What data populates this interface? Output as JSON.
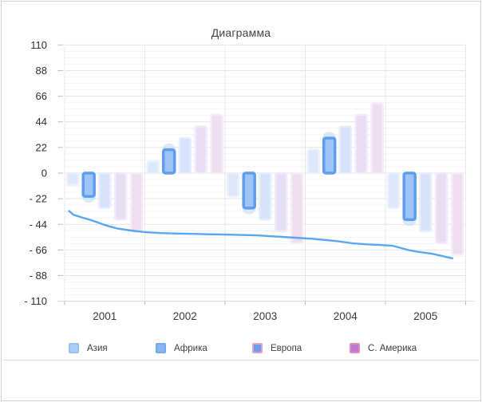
{
  "window": {
    "background": "#ffffff",
    "border_color": "#cfcfcf"
  },
  "chart": {
    "title": "Диаграмма",
    "legend": [
      {
        "label": "Азия",
        "fill": "#abcdf6",
        "border": "#97bff3"
      },
      {
        "label": "Африка",
        "fill": "#88b6f2",
        "border": "#77a8ee"
      },
      {
        "label": "Европа",
        "fill": "#6f9cec",
        "border": "#e2a0c8"
      },
      {
        "label": "С. Америка",
        "fill": "#bd77cd",
        "border": "#e08bbd"
      }
    ],
    "y_tick_labels": [
      "110",
      "88",
      "66",
      "44",
      "22",
      "0",
      "- 22",
      "- 44",
      "- 66",
      "- 88",
      "- 110"
    ],
    "x_labels": [
      "2001",
      "2002",
      "2003",
      "2004",
      "2005"
    ]
  },
  "chart_data": {
    "type": "bar",
    "subtype": "grouped bars with overlay line, one highlighted series",
    "title": "Диаграмма",
    "categories": [
      "2001",
      "2002",
      "2003",
      "2004",
      "2005"
    ],
    "ylim": [
      -110,
      110
    ],
    "y_ticks": [
      110,
      88,
      66,
      44,
      22,
      0,
      -22,
      -44,
      -66,
      -88,
      -110
    ],
    "y_minor_step": 5.5,
    "grid": true,
    "legend_position": "bottom",
    "series": [
      {
        "name": "Азия",
        "type": "bar",
        "state": "dimmed",
        "values": [
          -10,
          10,
          -20,
          20,
          -30
        ]
      },
      {
        "name": "Африка",
        "type": "bar",
        "state": "highlighted",
        "values": [
          -20,
          20,
          -30,
          30,
          -40
        ]
      },
      {
        "name": "Европа",
        "type": "bar",
        "state": "dimmed",
        "values": [
          -30,
          30,
          -40,
          40,
          -50
        ]
      },
      {
        "name": "С. Америка",
        "type": "bar",
        "state": "dimmed",
        "values": [
          -40,
          40,
          -50,
          50,
          -60
        ]
      },
      {
        "name": "",
        "type": "bar",
        "state": "dimmed",
        "values": [
          -50,
          50,
          -60,
          60,
          -70
        ]
      },
      {
        "name": "",
        "type": "line",
        "points": [
          [
            0.011,
            -32.5
          ],
          [
            0.022,
            -35.8
          ],
          [
            0.032,
            -36.8
          ],
          [
            0.048,
            -38.6
          ],
          [
            0.066,
            -40.4
          ],
          [
            0.082,
            -42.3
          ],
          [
            0.098,
            -44.3
          ],
          [
            0.115,
            -46.1
          ],
          [
            0.131,
            -47.5
          ],
          [
            0.147,
            -48.4
          ],
          [
            0.165,
            -49.3
          ],
          [
            0.181,
            -50.0
          ],
          [
            0.197,
            -50.5
          ],
          [
            0.214,
            -50.9
          ],
          [
            0.241,
            -51.5
          ],
          [
            0.281,
            -51.9
          ],
          [
            0.32,
            -52.2
          ],
          [
            0.36,
            -52.5
          ],
          [
            0.4,
            -52.8
          ],
          [
            0.44,
            -53.1
          ],
          [
            0.48,
            -53.5
          ],
          [
            0.519,
            -54.3
          ],
          [
            0.559,
            -55.1
          ],
          [
            0.589,
            -55.8
          ],
          [
            0.619,
            -56.4
          ],
          [
            0.653,
            -57.5
          ],
          [
            0.685,
            -58.7
          ],
          [
            0.718,
            -60.3
          ],
          [
            0.752,
            -61.1
          ],
          [
            0.784,
            -61.7
          ],
          [
            0.818,
            -62.4
          ],
          [
            0.838,
            -64.3
          ],
          [
            0.858,
            -66.1
          ],
          [
            0.878,
            -67.4
          ],
          [
            0.898,
            -68.3
          ],
          [
            0.917,
            -69.3
          ],
          [
            0.937,
            -70.8
          ],
          [
            0.957,
            -72.4
          ],
          [
            0.967,
            -73.1
          ]
        ]
      }
    ],
    "colors": {
      "bar_styles": [
        {
          "fill": "#dce9fb",
          "border": "#eaf1fd"
        },
        {
          "fill": "#9fc4f8",
          "border": "#5f9df0",
          "glow": "#bcd7f8"
        },
        {
          "fill": "#d7e3fa",
          "border": "#e6edfc"
        },
        {
          "fill": "#e7def6",
          "border": "#f1eafa"
        },
        {
          "fill": "#efdef0",
          "border": "#f6ebf6"
        }
      ],
      "line": "#58a7f3",
      "grid_major": "#e4e4e8",
      "grid_minor": "#f4f4f6",
      "grid_vertical": "#e7e9ec",
      "axis_line": "#d7dade",
      "tick": "#a9c2e0",
      "y_label_text": "#303030",
      "x_label_text": "#3b3b3b"
    }
  }
}
